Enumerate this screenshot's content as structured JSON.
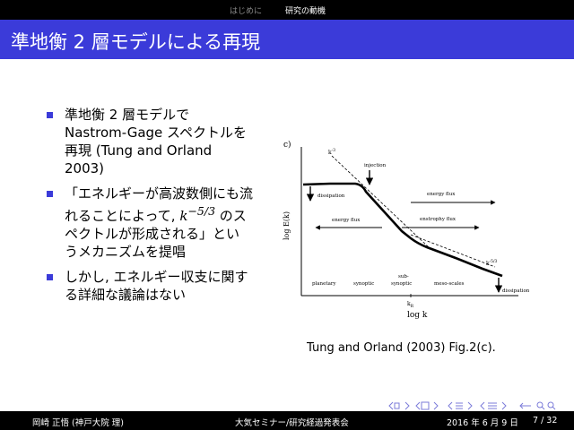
{
  "nav": {
    "section_intro": "はじめに",
    "section_research": "研究の動機"
  },
  "slide": {
    "title": "準地衡 2 層モデルによる再現"
  },
  "bullets": [
    {
      "text": "準地衡 2 層モデルで Nastrom-Gage スペクトルを再現 (Tung and Orland 2003)"
    },
    {
      "text_before": "「エネルギーが高波数側にも流れることによって, ",
      "math": "k",
      "math_exp": "−5/3",
      "text_after": " のスペクトルが形成される」というメカニズムを提唱"
    },
    {
      "text": "しかし, エネルギー収支に関する詳細な議論はない"
    }
  ],
  "figure": {
    "panel_label": "c)",
    "ylabel": "log E(k)",
    "xlabel": "log k",
    "slope_k3": "k",
    "slope_k3_exp": "-3",
    "slope_k53": "k",
    "slope_k53_exp": "-5/3",
    "kr_label": "k",
    "kr_sub": "R",
    "labels": {
      "injection": "injection",
      "dissipation_left": "dissipation",
      "energy_flux_right": "energy flux",
      "energy_flux_left": "energy flux",
      "enstrophy_flux": "enstrophy flux",
      "planetary": "planetary",
      "synoptic": "synoptic",
      "sub": "sub-",
      "sub_synoptic": "synoptic",
      "meso": "meso-scales",
      "dissipation_right": "dissipation"
    },
    "caption": "Tung and Orland (2003) Fig.2(c)."
  },
  "footer": {
    "author": "岡崎 正悟 (神戸大院 理)",
    "event": "大気セミナー/研究経過発表会",
    "date": "2016 年 6 月 9 日",
    "page": "7 / 32"
  },
  "colors": {
    "accent": "#3b3bd9",
    "bar": "#000000"
  }
}
